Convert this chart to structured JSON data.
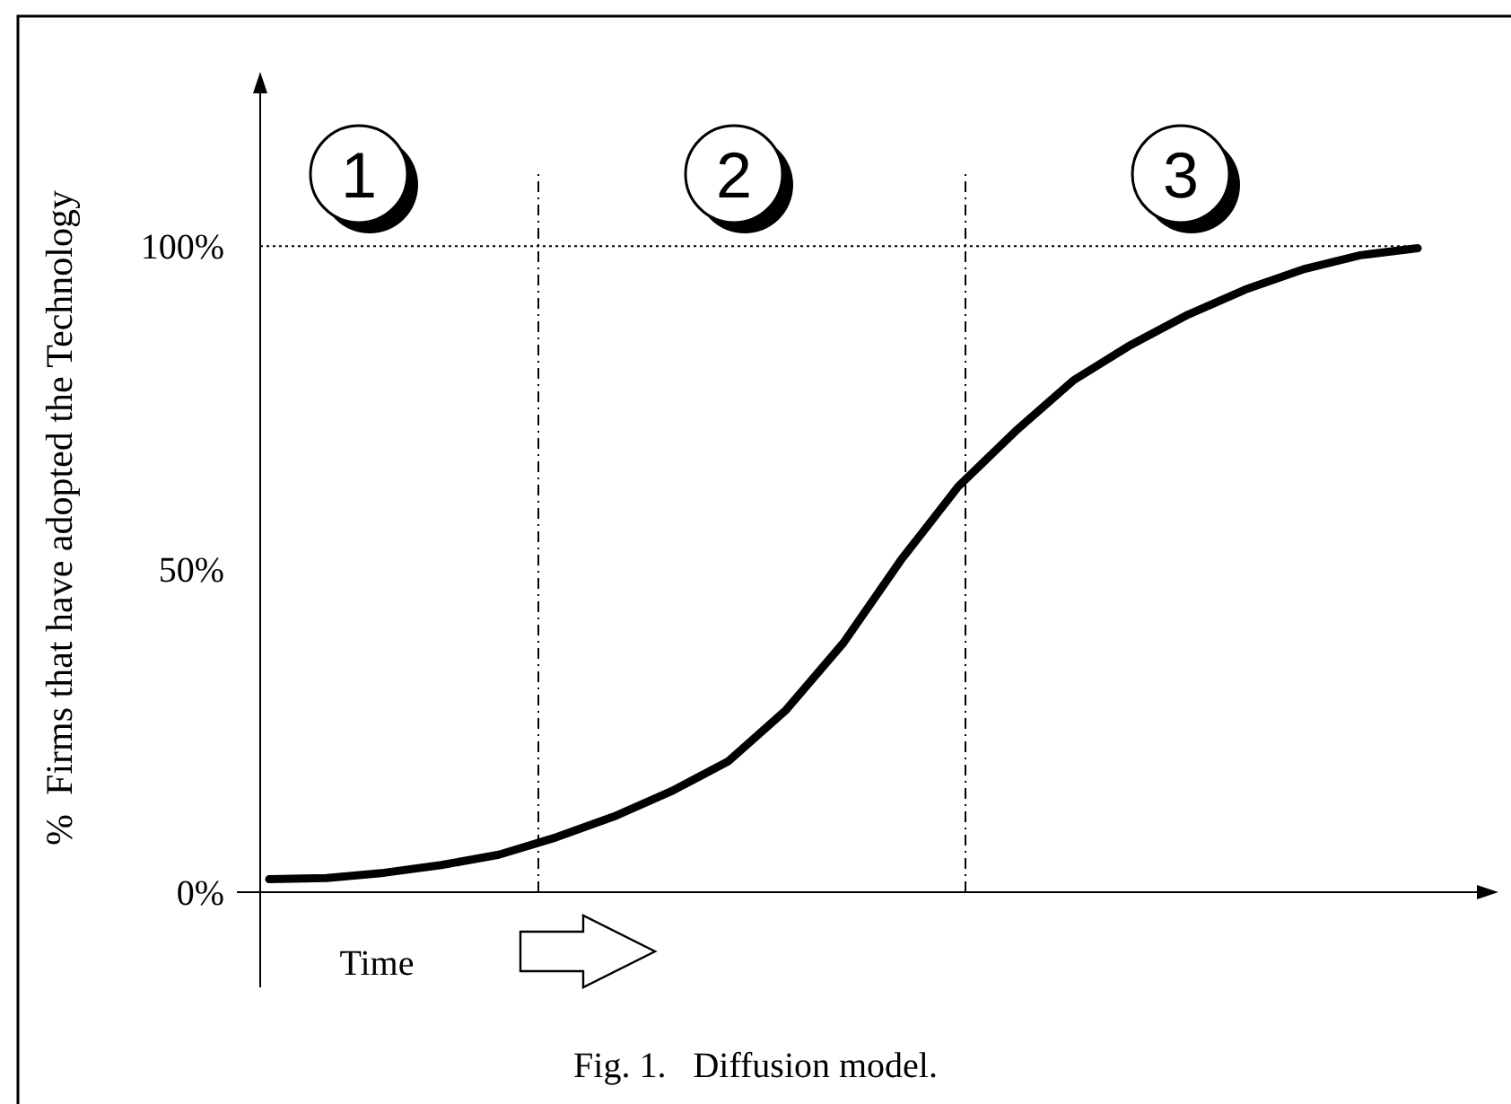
{
  "chart_data": {
    "type": "line",
    "title": "Fig. 1.   Diffusion model.",
    "xlabel": "Time",
    "ylabel": "%  Firms that have adopted the Technology",
    "categories": [
      null,
      null,
      null,
      null,
      null,
      null,
      null,
      null,
      null,
      null,
      null,
      null,
      null,
      null,
      null,
      null,
      null,
      null,
      null,
      null,
      null
    ],
    "series": [
      {
        "color": "#000000",
        "values": [
          2,
          2.2,
          3,
          4.2,
          5.8,
          8.5,
          11.7,
          15.6,
          20.3,
          28.2,
          38.6,
          51.4,
          62.8,
          71.4,
          79.2,
          84.7,
          89.4,
          93.3,
          96.4,
          98.6,
          99.7
        ]
      }
    ],
    "ylim": [
      0,
      127
    ],
    "yticks": [
      {
        "value": 0,
        "label": "0%"
      },
      {
        "value": 50,
        "label": "50%"
      },
      {
        "value": 100,
        "label": "100%"
      }
    ],
    "tick_labels": "y",
    "grid": false,
    "marker": "none",
    "line_style": "solid",
    "ref_lines": [
      {
        "axis": "y",
        "value": 100,
        "line_style": "dotted"
      }
    ],
    "annotations": [
      "1",
      "2",
      "3"
    ]
  }
}
